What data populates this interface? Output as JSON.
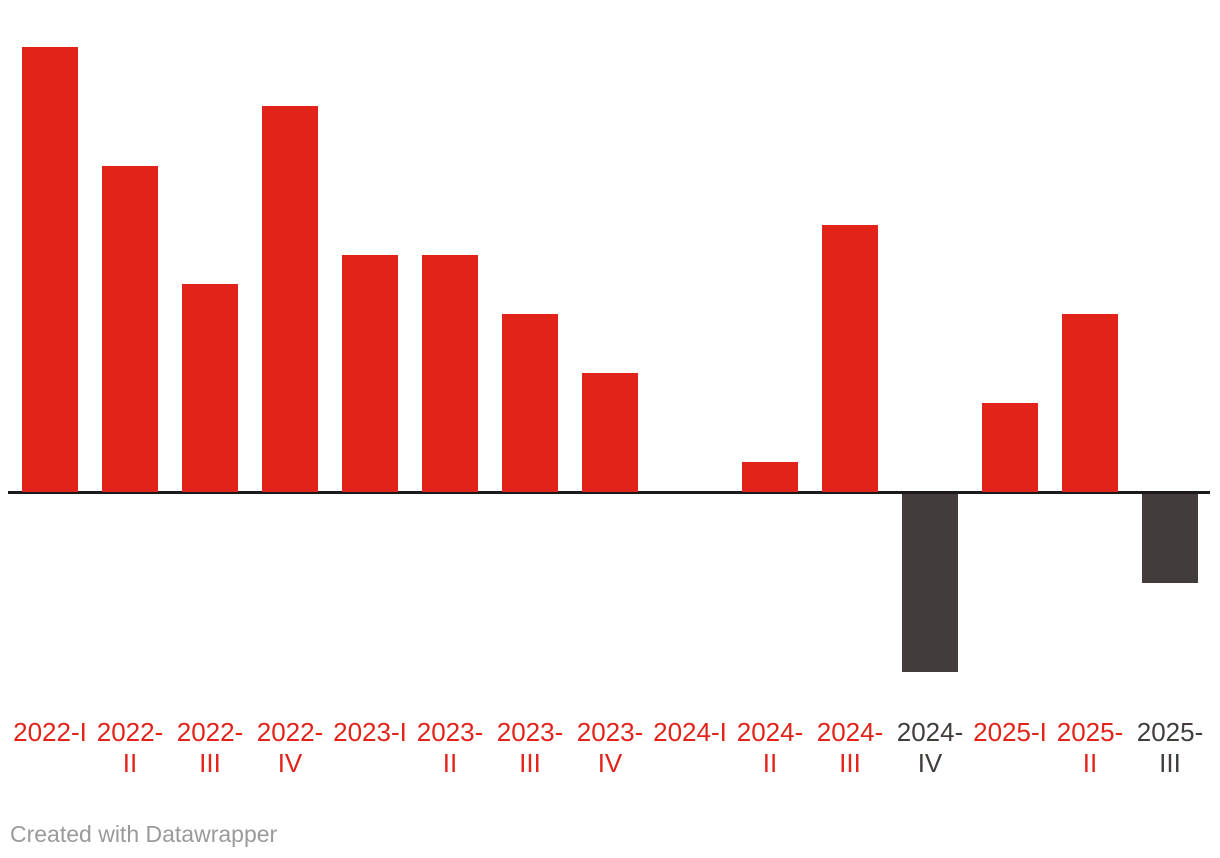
{
  "chart_data": {
    "type": "bar",
    "categories": [
      "2022-I",
      "2022-II",
      "2022-III",
      "2022-IV",
      "2023-I",
      "2023-II",
      "2023-III",
      "2023-IV",
      "2024-I",
      "2024-II",
      "2024-III",
      "2024-IV",
      "2025-I",
      "2025-II",
      "2025-III"
    ],
    "values": [
      7.5,
      5.5,
      3.5,
      6.5,
      4,
      4,
      3,
      2,
      0,
      0.5,
      4.5,
      -3,
      1.5,
      3,
      -1.5
    ],
    "bar_colors": [
      "positive",
      "positive",
      "positive",
      "positive",
      "positive",
      "positive",
      "positive",
      "positive",
      "positive",
      "positive",
      "positive",
      "negative",
      "positive",
      "positive",
      "negative"
    ],
    "x_label_lines": [
      [
        "2022-I"
      ],
      [
        "2022-",
        "II"
      ],
      [
        "2022-",
        "III"
      ],
      [
        "2022-",
        "IV"
      ],
      [
        "2023-I"
      ],
      [
        "2023-",
        "II"
      ],
      [
        "2023-",
        "III"
      ],
      [
        "2023-",
        "IV"
      ],
      [
        "2024-I"
      ],
      [
        "2024-",
        "II"
      ],
      [
        "2024-",
        "III"
      ],
      [
        "2024-",
        "IV"
      ],
      [
        "2025-I"
      ],
      [
        "2025-",
        "II"
      ],
      [
        "2025-",
        "III"
      ]
    ],
    "title": "",
    "xlabel": "",
    "ylabel": "",
    "ylim": [
      -3.5,
      7.6
    ],
    "baseline": 0,
    "y_axis_visible": false,
    "gridlines": false,
    "legend_position": "none",
    "note": "No y-axis labels or gridlines visible; values estimated from relative bar heights (positive bars red, negative bars dark)."
  },
  "colors": {
    "positive": "#e2231a",
    "negative": "#423d3b",
    "baseline": "#1a1a1a",
    "footer_text": "#9a9a9a",
    "background": "#ffffff"
  },
  "footer": {
    "credit": "Created with Datawrapper"
  }
}
